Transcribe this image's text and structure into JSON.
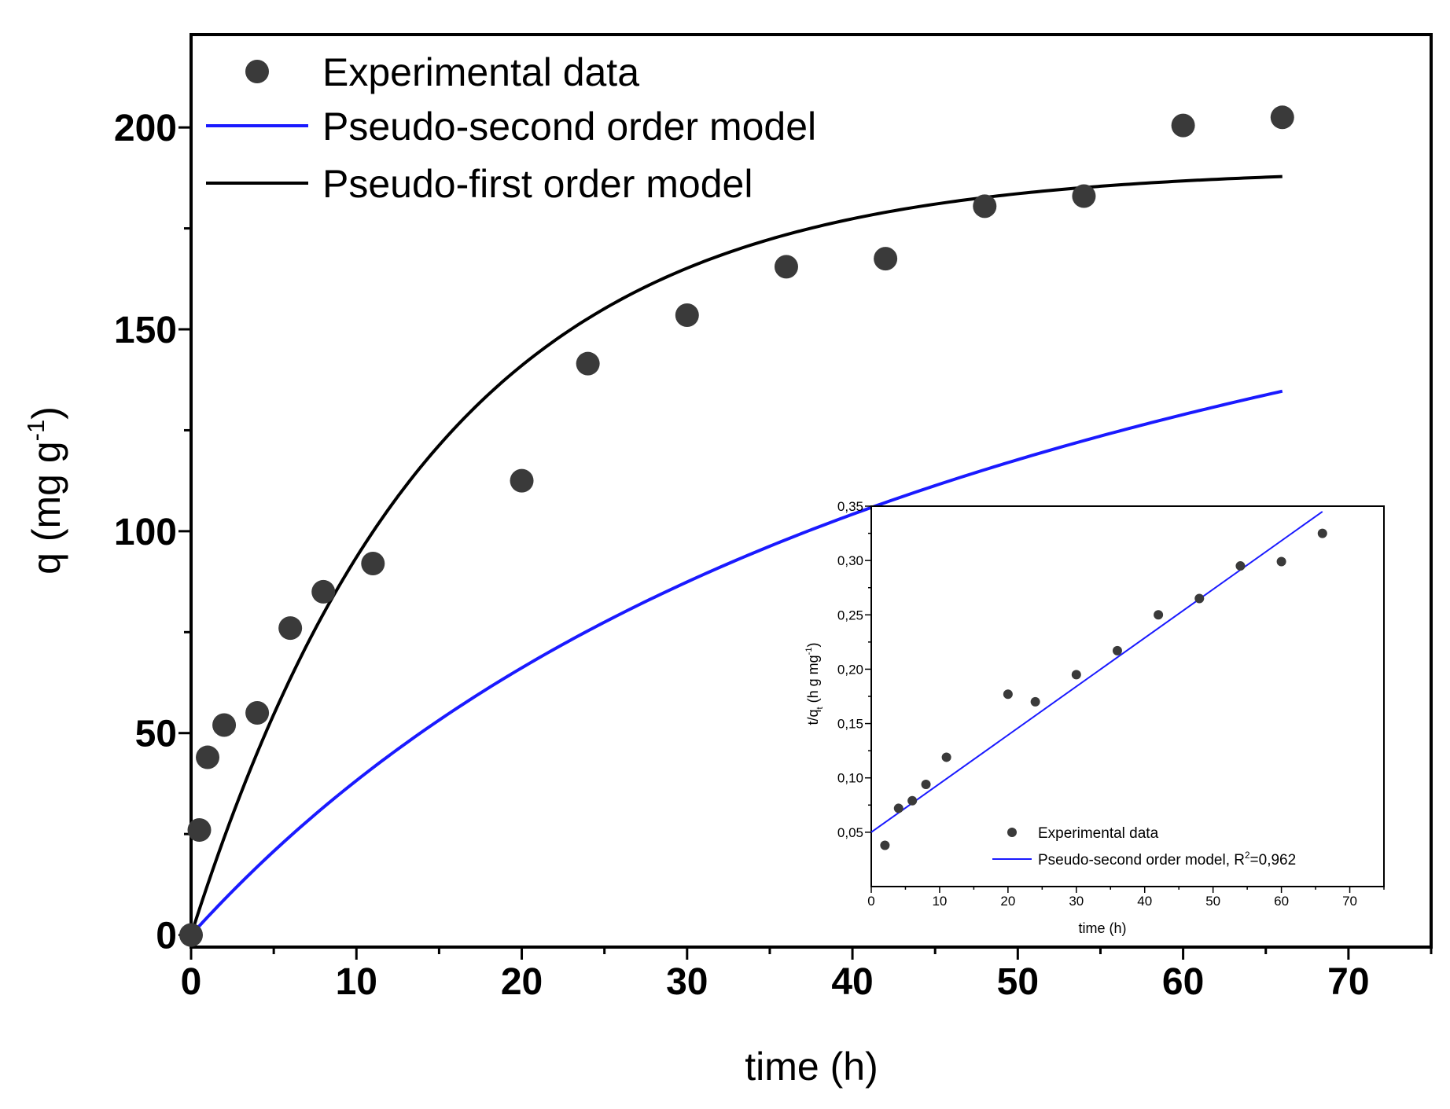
{
  "chart_data": [
    {
      "id": "main",
      "type": "scatter",
      "xlabel": "time (h)",
      "ylabel_main": "q (mg g",
      "ylabel_sup": "-1",
      "ylabel_close": ")",
      "xlim": [
        0,
        75
      ],
      "ylim": [
        -3,
        223
      ],
      "x_ticks": [
        0,
        10,
        20,
        30,
        40,
        50,
        60,
        70
      ],
      "x_tick_labels": [
        "0",
        "10",
        "20",
        "30",
        "40",
        "50",
        "60",
        "70"
      ],
      "y_ticks": [
        0,
        50,
        100,
        150,
        200
      ],
      "y_tick_labels": [
        "0",
        "50",
        "100",
        "150",
        "200"
      ],
      "legend_position": "top-left",
      "legend": [
        {
          "label": "Experimental data",
          "kind": "marker",
          "color": "#3a3a3a"
        },
        {
          "label": "Pseudo-second order model",
          "kind": "line",
          "color": "#1a1aff"
        },
        {
          "label": "Pseudo-first order model",
          "kind": "line",
          "color": "#000000"
        }
      ],
      "series": [
        {
          "name": "Experimental data",
          "kind": "scatter",
          "color": "#3a3a3a",
          "x": [
            0,
            0.5,
            1,
            2,
            4,
            6,
            8,
            11,
            20,
            24,
            30,
            36,
            42,
            48,
            54,
            60,
            66
          ],
          "y": [
            0,
            26,
            44,
            52,
            55,
            76,
            85,
            92,
            112.5,
            141.5,
            153.5,
            165.5,
            167.5,
            180.5,
            183,
            200.5,
            202.5
          ]
        },
        {
          "name": "Pseudo-second order model",
          "kind": "model_pso",
          "color": "#1a1aff",
          "params": {
            "qe": 245,
            "k": 7.55e-05
          },
          "x_range": [
            0,
            66
          ]
        },
        {
          "name": "Pseudo-first order model",
          "kind": "model_pfo",
          "color": "#000000",
          "params": {
            "qe": 190,
            "k1": 0.0678
          },
          "x_range": [
            0,
            66
          ]
        }
      ]
    },
    {
      "id": "inset",
      "type": "scatter",
      "xlabel": "time (h)",
      "ylabel_main": "t/q",
      "ylabel_sub": "t",
      "ylabel_mid": " (h g mg",
      "ylabel_sup": "-1",
      "ylabel_close": ")",
      "xlim": [
        0,
        75
      ],
      "ylim": [
        0,
        0.35
      ],
      "x_ticks": [
        0,
        10,
        20,
        30,
        40,
        50,
        60,
        70
      ],
      "x_tick_labels": [
        "0",
        "10",
        "20",
        "30",
        "40",
        "50",
        "60",
        "70"
      ],
      "y_ticks": [
        0.05,
        0.1,
        0.15,
        0.2,
        0.25,
        0.3,
        0.35
      ],
      "y_tick_labels": [
        "0,05",
        "0,10",
        "0,15",
        "0,20",
        "0,25",
        "0,30",
        "0,35"
      ],
      "legend_position": "bottom-right",
      "legend": [
        {
          "label": "Experimental data",
          "kind": "marker",
          "color": "#3a3a3a"
        },
        {
          "label_main": "Pseudo-second order model, R",
          "label_sup": "2",
          "label_tail": "=0,962",
          "kind": "line",
          "color": "#1a1aff"
        }
      ],
      "series": [
        {
          "name": "Experimental data",
          "kind": "scatter",
          "color": "#3a3a3a",
          "x": [
            2,
            4,
            6,
            8,
            11,
            20,
            24,
            30,
            36,
            42,
            48,
            54,
            60,
            66
          ],
          "y": [
            0.038,
            0.072,
            0.079,
            0.094,
            0.119,
            0.177,
            0.17,
            0.195,
            0.217,
            0.25,
            0.265,
            0.295,
            0.299,
            0.325
          ]
        },
        {
          "name": "Pseudo-second order model",
          "kind": "line",
          "color": "#1a1aff",
          "x": [
            0,
            66
          ],
          "y": [
            0.05,
            0.345
          ]
        }
      ]
    }
  ]
}
